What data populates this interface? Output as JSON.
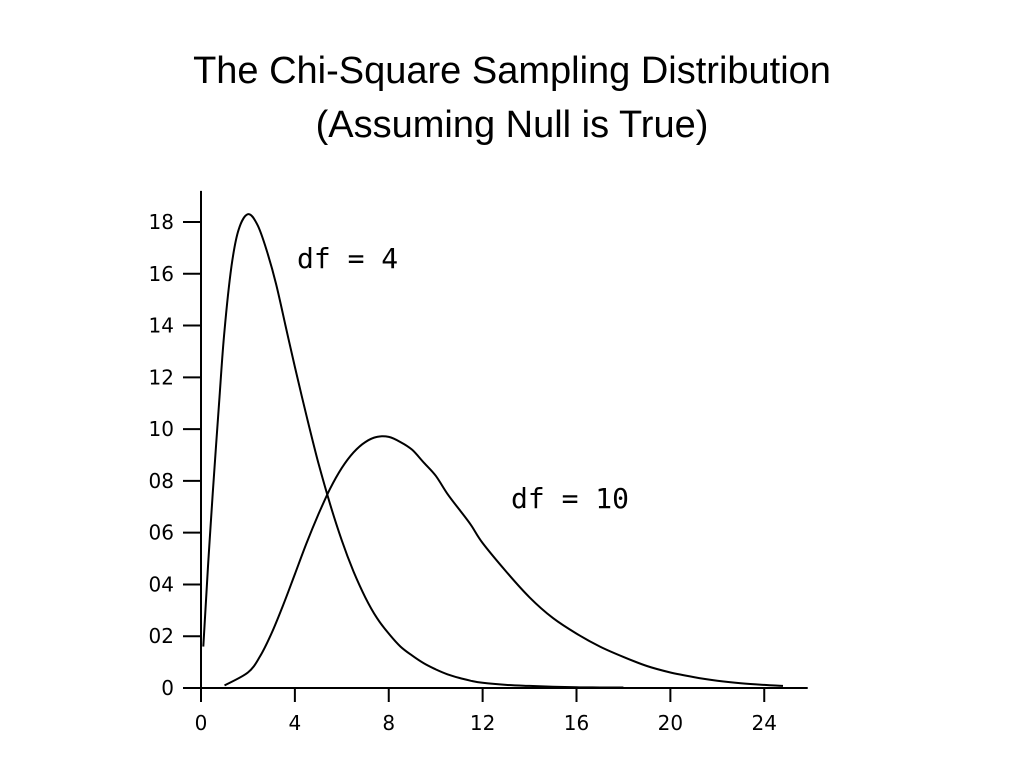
{
  "slide": {
    "title_line1": "The Chi-Square Sampling Distribution",
    "title_line2": "(Assuming Null is True)"
  },
  "chart_data": {
    "type": "line",
    "title": "",
    "xlabel": "",
    "ylabel": "",
    "xlim": [
      0,
      25
    ],
    "ylim": [
      0,
      19.2
    ],
    "x_ticks": [
      0,
      4,
      8,
      12,
      16,
      20,
      24
    ],
    "x_tick_labels": [
      "0",
      "4",
      "8",
      "12",
      "16",
      "20",
      "24"
    ],
    "y_ticks": [
      0,
      2,
      4,
      6,
      8,
      10,
      12,
      14,
      16,
      18
    ],
    "y_tick_labels": [
      "0",
      "02",
      "04",
      "06",
      "08",
      "10",
      "12",
      "14",
      "16",
      "18"
    ],
    "grid": false,
    "legend": "none",
    "series": [
      {
        "name": "df = 4",
        "x": [
          0.1,
          0.3,
          0.5,
          0.8,
          1.0,
          1.3,
          1.6,
          2.0,
          2.4,
          2.8,
          3.2,
          3.6,
          4.0,
          4.5,
          5.0,
          5.5,
          6.0,
          6.5,
          7.0,
          7.5,
          8.0,
          8.5,
          9.0,
          9.5,
          10.0,
          10.5,
          11.0,
          11.5,
          12.0,
          13.0,
          14.0,
          15.0,
          16.0,
          17.0,
          18.0
        ],
        "y": [
          1.6,
          4.7,
          7.5,
          11.4,
          13.8,
          16.3,
          17.7,
          18.3,
          17.9,
          16.9,
          15.6,
          14.0,
          12.4,
          10.5,
          8.7,
          7.1,
          5.7,
          4.5,
          3.5,
          2.7,
          2.1,
          1.6,
          1.25,
          0.95,
          0.72,
          0.53,
          0.39,
          0.28,
          0.2,
          0.12,
          0.08,
          0.05,
          0.03,
          0.02,
          0.02
        ]
      },
      {
        "name": "df = 10",
        "x": [
          1.0,
          2.0,
          2.5,
          3.0,
          3.5,
          4.0,
          4.5,
          5.0,
          5.5,
          6.0,
          6.5,
          7.0,
          7.5,
          8.0,
          8.5,
          9.0,
          9.5,
          10.0,
          10.5,
          11.0,
          11.5,
          12.0,
          13.0,
          14.0,
          15.0,
          16.0,
          17.0,
          18.0,
          19.0,
          20.0,
          21.0,
          22.0,
          23.0,
          24.0,
          24.8
        ],
        "y": [
          0.1,
          0.6,
          1.2,
          2.1,
          3.2,
          4.4,
          5.6,
          6.7,
          7.7,
          8.5,
          9.1,
          9.5,
          9.7,
          9.7,
          9.5,
          9.2,
          8.7,
          8.2,
          7.5,
          6.9,
          6.3,
          5.6,
          4.5,
          3.5,
          2.7,
          2.1,
          1.6,
          1.2,
          0.85,
          0.6,
          0.42,
          0.28,
          0.18,
          0.12,
          0.08
        ]
      }
    ]
  }
}
